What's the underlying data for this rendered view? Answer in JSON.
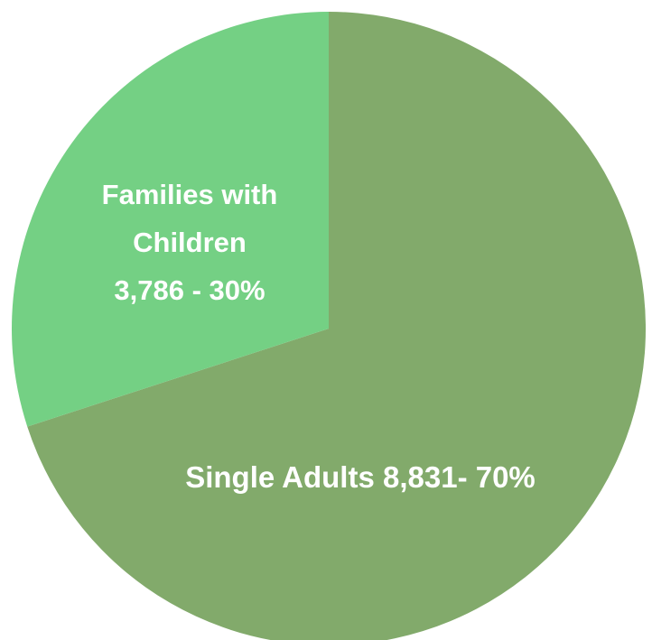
{
  "chart_data": {
    "type": "pie",
    "title": "",
    "start_angle_deg": 0,
    "direction": "clockwise",
    "legend": "none",
    "slices": [
      {
        "name": "Single Adults",
        "value": 8831,
        "percent": 70,
        "color": "#82aa6b",
        "label_lines": [
          "Single Adults 8,831- 70%"
        ]
      },
      {
        "name": "Families with Children",
        "value": 3786,
        "percent": 30,
        "color": "#74d084",
        "label_lines": [
          "Families with",
          "Children",
          "3,786 - 30%"
        ]
      }
    ]
  }
}
